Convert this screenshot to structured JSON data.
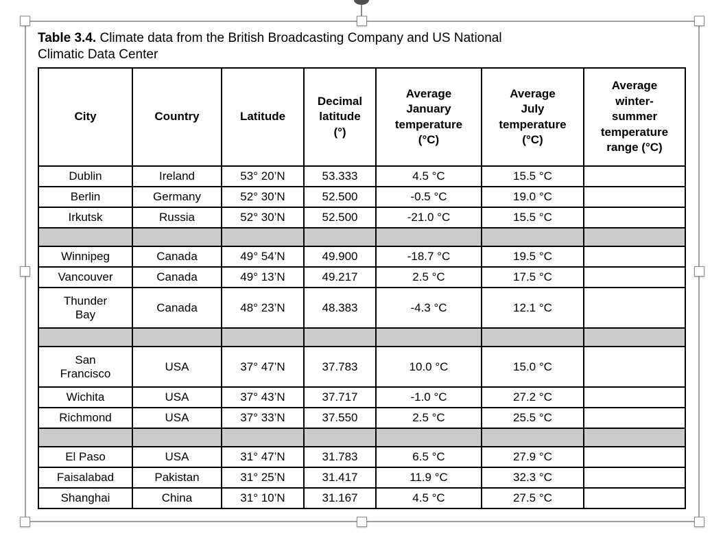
{
  "caption": {
    "label": "Table 3.4.",
    "text": " Climate data from the British Broadcasting Company and US National Climatic Data Center"
  },
  "table": {
    "columns": [
      "City",
      "Country",
      "Latitude",
      "Decimal\nlatitude\n(°)",
      "Average\nJanuary\ntemperature\n(°C)",
      "Average\nJuly\ntemperature\n(°C)",
      "Average\nwinter-\nsummer\ntemperature\nrange (°C)"
    ],
    "rows": [
      {
        "type": "data",
        "city": "Dublin",
        "country": "Ireland",
        "latitude": "53° 20’N",
        "decimal": "53.333",
        "jan": "4.5 °C",
        "jul": "15.5 °C",
        "range": ""
      },
      {
        "type": "data",
        "city": "Berlin",
        "country": "Germany",
        "latitude": "52° 30’N",
        "decimal": "52.500",
        "jan": "-0.5 °C",
        "jul": "19.0 °C",
        "range": ""
      },
      {
        "type": "data",
        "city": "Irkutsk",
        "country": "Russia",
        "latitude": "52° 30’N",
        "decimal": "52.500",
        "jan": "-21.0 °C",
        "jul": "15.5 °C",
        "range": ""
      },
      {
        "type": "spacer"
      },
      {
        "type": "data",
        "city": "Winnipeg",
        "country": "Canada",
        "latitude": "49° 54’N",
        "decimal": "49.900",
        "jan": "-18.7 °C",
        "jul": "19.5 °C",
        "range": ""
      },
      {
        "type": "data",
        "city": "Vancouver",
        "country": "Canada",
        "latitude": "49° 13’N",
        "decimal": "49.217",
        "jan": "2.5 °C",
        "jul": "17.5 °C",
        "range": ""
      },
      {
        "type": "data",
        "city": "Thunder\nBay",
        "country": "Canada",
        "latitude": "48° 23’N",
        "decimal": "48.383",
        "jan": "-4.3 °C",
        "jul": "12.1 °C",
        "range": ""
      },
      {
        "type": "spacer"
      },
      {
        "type": "data",
        "city": "San\nFrancisco",
        "country": "USA",
        "latitude": "37° 47’N",
        "decimal": "37.783",
        "jan": "10.0 °C",
        "jul": "15.0 °C",
        "range": ""
      },
      {
        "type": "data",
        "city": "Wichita",
        "country": "USA",
        "latitude": "37° 43’N",
        "decimal": "37.717",
        "jan": "-1.0 °C",
        "jul": "27.2 °C",
        "range": ""
      },
      {
        "type": "data",
        "city": "Richmond",
        "country": "USA",
        "latitude": "37° 33’N",
        "decimal": "37.550",
        "jan": "2.5 °C",
        "jul": "25.5 °C",
        "range": ""
      },
      {
        "type": "spacer"
      },
      {
        "type": "data",
        "city": "El Paso",
        "country": "USA",
        "latitude": "31° 47’N",
        "decimal": "31.783",
        "jan": "6.5 °C",
        "jul": "27.9 °C",
        "range": ""
      },
      {
        "type": "data",
        "city": "Faisalabad",
        "country": "Pakistan",
        "latitude": "31° 25’N",
        "decimal": "31.417",
        "jan": "11.9 °C",
        "jul": "32.3 °C",
        "range": ""
      },
      {
        "type": "data",
        "city": "Shanghai",
        "country": "China",
        "latitude": "31° 10’N",
        "decimal": "31.167",
        "jan": "4.5 °C",
        "jul": "27.5 °C",
        "range": ""
      }
    ]
  },
  "selection": {
    "handles": [
      "resize-handle-top-left",
      "resize-handle-top-center",
      "resize-handle-top-right",
      "resize-handle-middle-left",
      "resize-handle-middle-right",
      "resize-handle-bottom-left",
      "resize-handle-bottom-center",
      "resize-handle-bottom-right",
      "rotation-handle"
    ],
    "frame_color": "#a0a0a0"
  },
  "colors": {
    "spacer_row": "#cbcbcb",
    "table_border": "#000000",
    "text": "#000000"
  }
}
